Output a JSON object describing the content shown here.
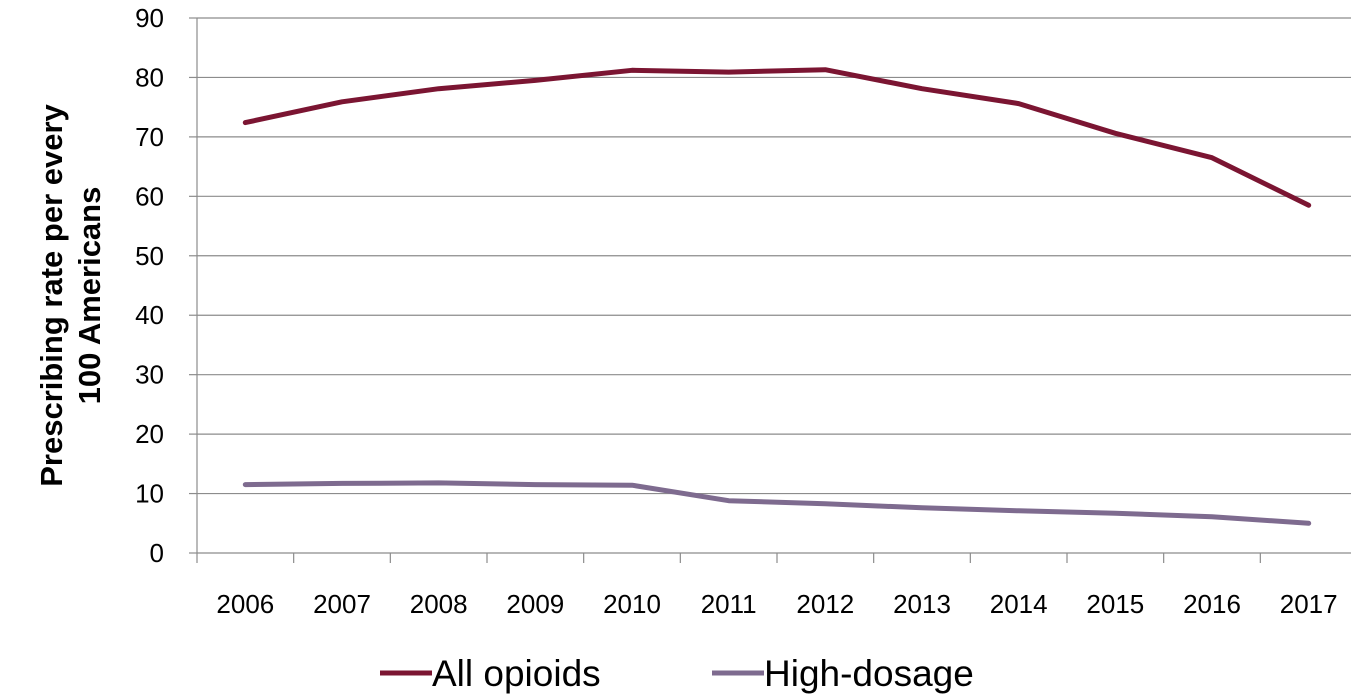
{
  "chart_data": {
    "type": "line",
    "title": "",
    "xlabel": "",
    "ylabel_lines": [
      "Prescribing rate per every",
      "100 Americans"
    ],
    "categories": [
      "2006",
      "2007",
      "2008",
      "2009",
      "2010",
      "2011",
      "2012",
      "2013",
      "2014",
      "2015",
      "2016",
      "2017"
    ],
    "ylim": [
      0,
      90
    ],
    "yticks": [
      0,
      10,
      20,
      30,
      40,
      50,
      60,
      70,
      80,
      90
    ],
    "grid": "horizontal",
    "legend_position": "bottom",
    "series": [
      {
        "name": "All opioids",
        "color": "#7b1532",
        "values": [
          72.4,
          75.9,
          78.1,
          79.5,
          81.2,
          80.9,
          81.3,
          78.1,
          75.6,
          70.6,
          66.5,
          58.5
        ]
      },
      {
        "name": "High-dosage",
        "color": "#7e6b8f",
        "values": [
          11.5,
          11.7,
          11.8,
          11.5,
          11.4,
          8.8,
          8.3,
          7.6,
          7.1,
          6.7,
          6.1,
          5.0
        ]
      }
    ]
  }
}
